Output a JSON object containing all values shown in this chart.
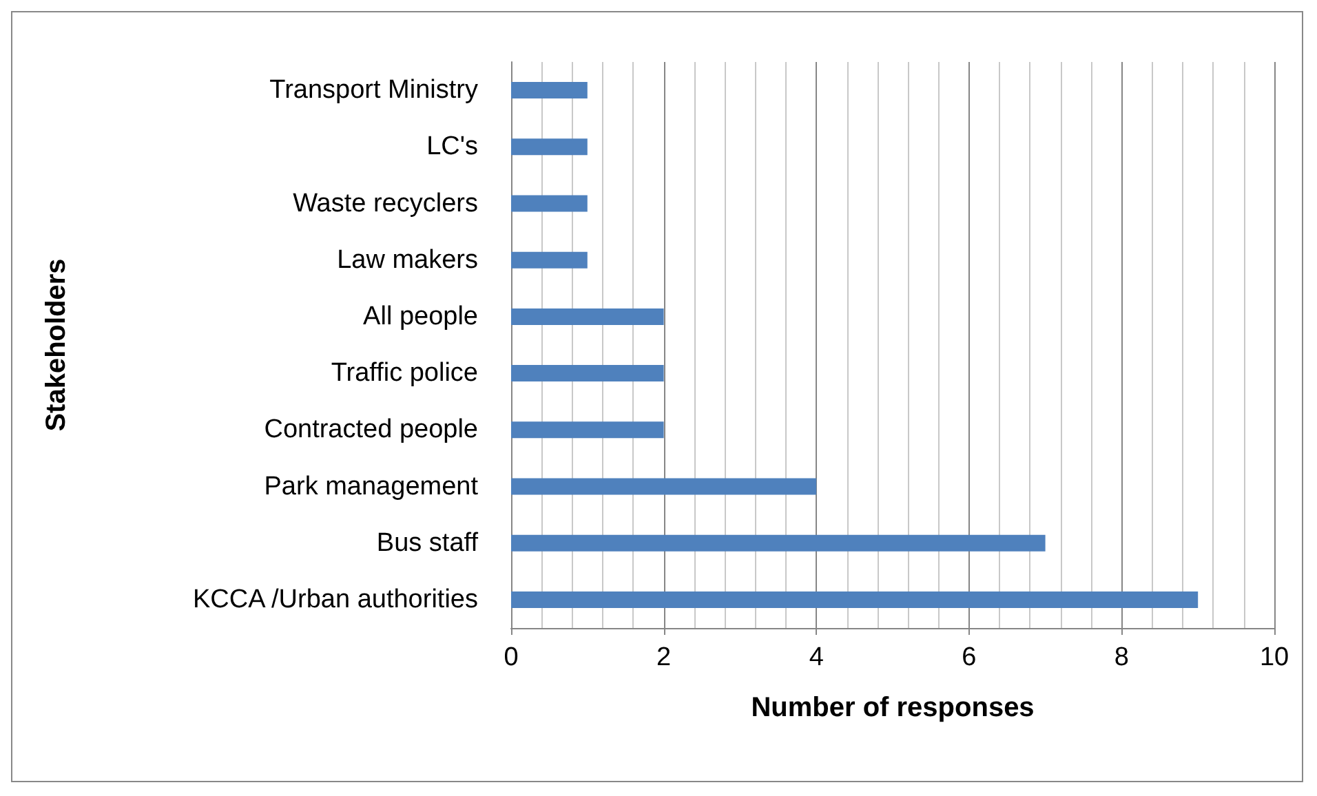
{
  "chart_data": {
    "type": "bar",
    "orientation": "horizontal",
    "xlabel": "Number of responses",
    "ylabel": "Stakeholders",
    "categories": [
      "Transport Ministry",
      "LC's",
      "Waste recyclers",
      "Law makers",
      "All people",
      "Traffic police",
      "Contracted people",
      "Park management",
      "Bus staff",
      "KCCA /Urban authorities"
    ],
    "values": [
      1,
      1,
      1,
      1,
      2,
      2,
      2,
      4,
      7,
      9
    ],
    "color": "#4f81bd",
    "xlim": [
      0,
      10
    ],
    "xticks": [
      0,
      2,
      4,
      6,
      8,
      10
    ],
    "grid": "x"
  }
}
